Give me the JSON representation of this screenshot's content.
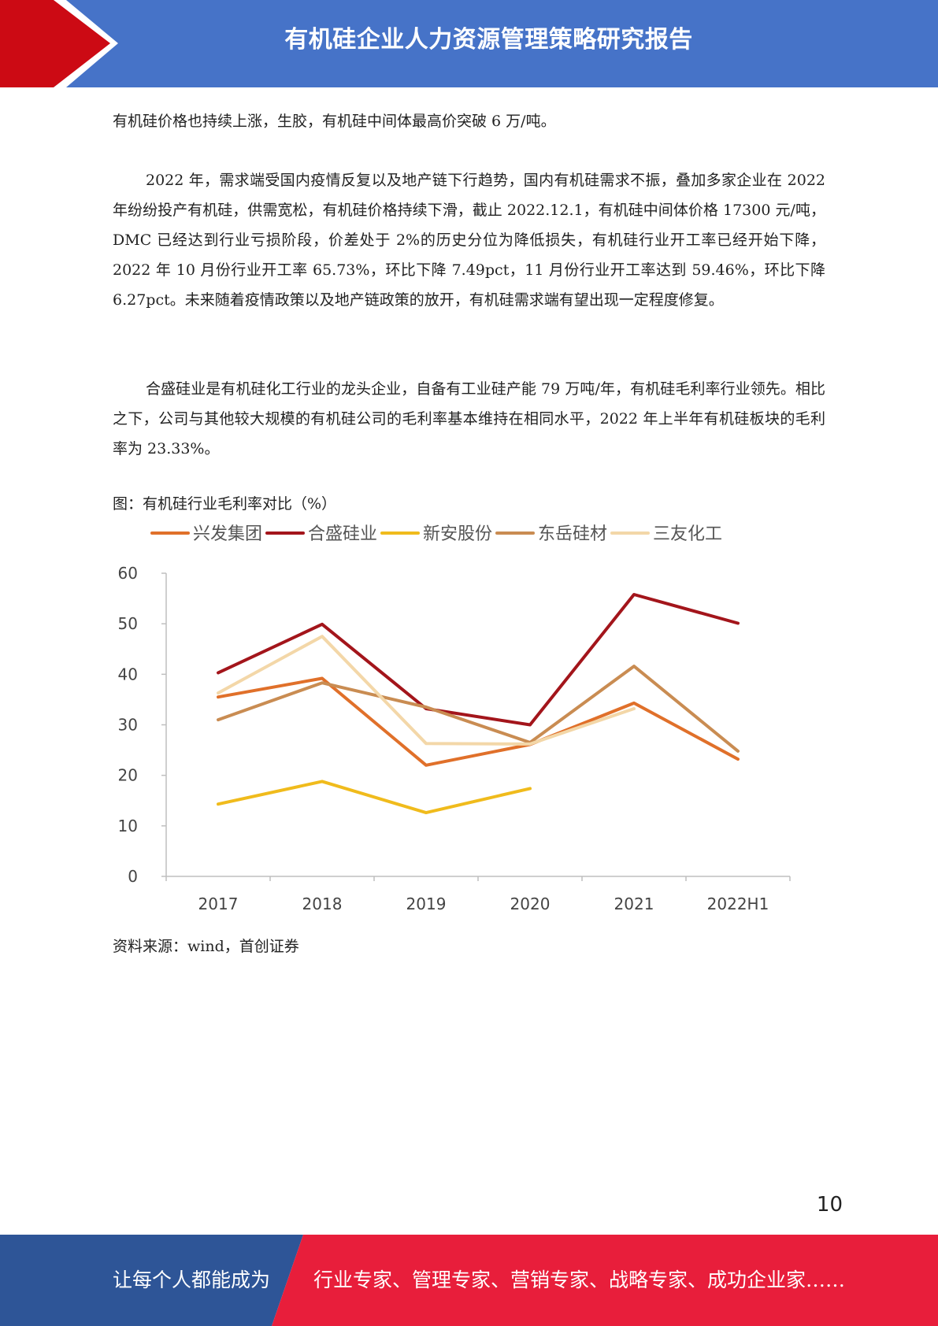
{
  "header": {
    "title": "有机硅企业人力资源管理策略研究报告"
  },
  "paragraphs": [
    "有机硅价格也持续上涨，生胶，有机硅中间体最高价突破 6 万/吨。",
    "2022 年，需求端受国内疫情反复以及地产链下行趋势，国内有机硅需求不振，叠加多家企业在 2022 年纷纷投产有机硅，供需宽松，有机硅价格持续下滑，截止 2022.12.1，有机硅中间体价格 17300 元/吨，DMC 已经达到行业亏损阶段，价差处于 2%的历史分位为降低损失，有机硅行业开工率已经开始下降，2022 年 10 月份行业开工率 65.73%，环比下降 7.49pct，11 月份行业开工率达到 59.46%，环比下降 6.27pct。未来随着疫情政策以及地产链政策的放开，有机硅需求端有望出现一定程度修复。",
    "合盛硅业是有机硅化工行业的龙头企业，自备有工业硅产能 79 万吨/年，有机硅毛利率行业领先。相比之下，公司与其他较大规模的有机硅公司的毛利率基本维持在相同水平，2022 年上半年有机硅板块的毛利率为 23.33%。"
  ],
  "figure": {
    "caption": "图：有机硅行业毛利率对比（%）",
    "source": "资料来源：wind，首创证券"
  },
  "chart_data": {
    "type": "line",
    "categories": [
      "2017",
      "2018",
      "2019",
      "2020",
      "2021",
      "2022H1"
    ],
    "ylim": [
      0,
      60
    ],
    "yticks": [
      "0",
      "10",
      "20",
      "30",
      "40",
      "50",
      "60"
    ],
    "legend_position": "top",
    "grid": false,
    "series": [
      {
        "name": "兴发集团",
        "color": "#e0702a",
        "values": [
          35.5,
          39.2,
          22.0,
          26.1,
          34.3,
          23.2
        ]
      },
      {
        "name": "合盛硅业",
        "color": "#a3151b",
        "values": [
          40.3,
          49.9,
          33.2,
          30.0,
          55.8,
          50.1
        ]
      },
      {
        "name": "新安股份",
        "color": "#f0bb1c",
        "values": [
          14.3,
          18.8,
          12.6,
          17.4,
          null,
          null
        ]
      },
      {
        "name": "东岳硅材",
        "color": "#c98c52",
        "values": [
          31.0,
          38.3,
          33.5,
          26.5,
          41.6,
          24.8
        ]
      },
      {
        "name": "三友化工",
        "color": "#f3d7a8",
        "values": [
          36.3,
          47.5,
          26.3,
          26.2,
          33.2,
          null
        ]
      }
    ]
  },
  "page_number": "10",
  "footer": {
    "slogan_left": "让每个人都能成为",
    "slogan_right": "行业专家、管理专家、营销专家、战略专家、成功企业家……",
    "colors": {
      "left": "#2e5597",
      "right": "#e81e3b"
    }
  }
}
